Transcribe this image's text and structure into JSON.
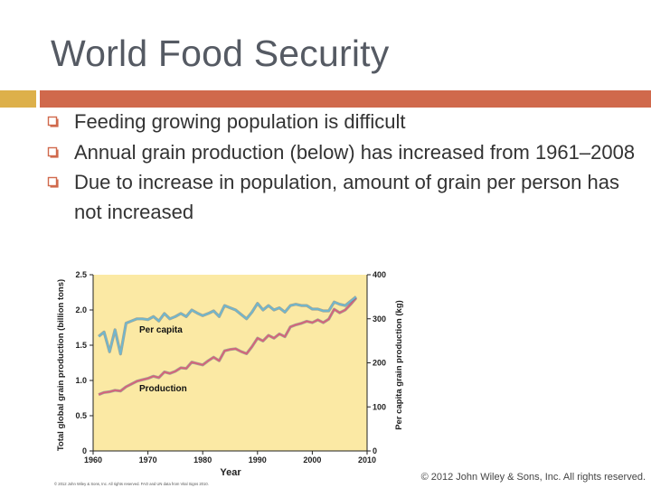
{
  "slide": {
    "title": "World Food Security",
    "bullets": [
      "Feeding growing population is difficult",
      "Annual grain production (below) has increased from 1961–2008",
      "Due to increase in population, amount of grain per person has not increased"
    ],
    "copyright": "© 2012 John Wiley & Sons, Inc. All rights reserved."
  },
  "colors": {
    "title": "#555a63",
    "accent_left": "#ddb04a",
    "accent_right": "#d0694c",
    "plot_background": "#fbe9a4",
    "production_line": "#d8607a",
    "per_capita_line": "#6fb7cf"
  },
  "chart_data": {
    "type": "line",
    "title": "",
    "xlabel": "Year",
    "ylabel": "Total global grain production (billion tons)",
    "y2label": "Per capita grain production (kg)",
    "xlim": [
      1960,
      2010
    ],
    "ylim": [
      0,
      2.5
    ],
    "y2lim": [
      0,
      400
    ],
    "x_ticks": [
      "1960",
      "1970",
      "1980",
      "1990",
      "2000",
      "2010"
    ],
    "y_ticks": [
      "0",
      "0.5",
      "1.0",
      "1.5",
      "2.0",
      "2.5"
    ],
    "y2_ticks": [
      "0",
      "100",
      "200",
      "300",
      "400"
    ],
    "annotations": [
      "Per capita",
      "Production"
    ],
    "source_note": "© 2012 John Wiley & Sons, Inc. All rights reserved. FAO and UN data from Vital Signs 2010.",
    "series": [
      {
        "name": "Production",
        "axis": "left",
        "x": [
          1961,
          1962,
          1963,
          1964,
          1965,
          1966,
          1967,
          1968,
          1969,
          1970,
          1971,
          1972,
          1973,
          1974,
          1975,
          1976,
          1977,
          1978,
          1979,
          1980,
          1981,
          1982,
          1983,
          1984,
          1985,
          1986,
          1987,
          1988,
          1989,
          1990,
          1991,
          1992,
          1993,
          1994,
          1995,
          1996,
          1997,
          1998,
          1999,
          2000,
          2001,
          2002,
          2003,
          2004,
          2005,
          2006,
          2007,
          2008
        ],
        "values": [
          0.8,
          0.83,
          0.84,
          0.86,
          0.85,
          0.91,
          0.95,
          0.99,
          1.01,
          1.03,
          1.06,
          1.04,
          1.12,
          1.1,
          1.13,
          1.18,
          1.17,
          1.26,
          1.24,
          1.22,
          1.28,
          1.33,
          1.28,
          1.42,
          1.44,
          1.45,
          1.41,
          1.38,
          1.48,
          1.6,
          1.56,
          1.64,
          1.6,
          1.66,
          1.62,
          1.76,
          1.79,
          1.81,
          1.84,
          1.82,
          1.86,
          1.82,
          1.87,
          2.01,
          1.96,
          2.0,
          2.08,
          2.17
        ]
      },
      {
        "name": "Per capita",
        "axis": "right",
        "x": [
          1961,
          1962,
          1963,
          1964,
          1965,
          1966,
          1967,
          1968,
          1969,
          1970,
          1971,
          1972,
          1973,
          1974,
          1975,
          1976,
          1977,
          1978,
          1979,
          1980,
          1981,
          1982,
          1983,
          1984,
          1985,
          1986,
          1987,
          1988,
          1989,
          1990,
          1991,
          1992,
          1993,
          1994,
          1995,
          1996,
          1997,
          1998,
          1999,
          2000,
          2001,
          2002,
          2003,
          2004,
          2005,
          2006,
          2007,
          2008
        ],
        "values": [
          260,
          270,
          225,
          275,
          220,
          290,
          295,
          300,
          300,
          298,
          305,
          295,
          312,
          300,
          305,
          312,
          305,
          320,
          313,
          307,
          312,
          318,
          305,
          330,
          325,
          320,
          310,
          300,
          315,
          335,
          320,
          330,
          320,
          325,
          315,
          330,
          333,
          330,
          330,
          322,
          322,
          318,
          318,
          338,
          333,
          330,
          340,
          350
        ]
      }
    ]
  }
}
